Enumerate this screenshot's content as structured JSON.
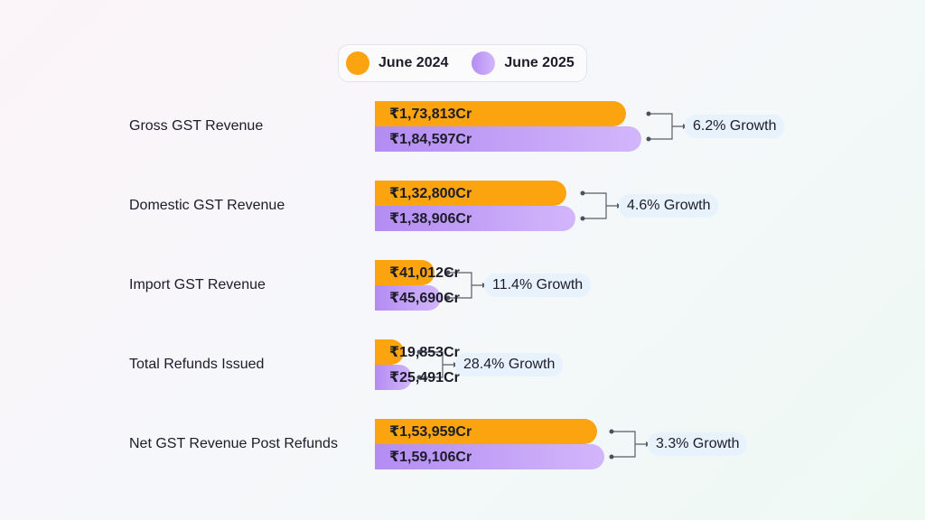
{
  "legend": [
    {
      "label": "June 2024",
      "color": "#fca40f"
    },
    {
      "label": "June 2025",
      "color": "#c3a2f7"
    }
  ],
  "chart_data": {
    "type": "bar",
    "orientation": "horizontal",
    "categories": [
      "Gross GST Revenue",
      "Domestic GST Revenue",
      "Import GST Revenue",
      "Total Refunds Issued",
      "Net GST Revenue Post Refunds"
    ],
    "series": [
      {
        "name": "June 2024",
        "color": "#fca40f",
        "values": [
          173813,
          132800,
          41012,
          19853,
          153959
        ],
        "labels": [
          "₹1,73,813Cr",
          "₹1,32,800Cr",
          "₹41,012Cr",
          "₹19,853Cr",
          "₹1,53,959Cr"
        ]
      },
      {
        "name": "June 2025",
        "color": "#c3a2f7",
        "values": [
          184597,
          138906,
          45690,
          25491,
          159106
        ],
        "labels": [
          "₹1,84,597Cr",
          "₹1,38,906Cr",
          "₹45,690Cr",
          "₹25,491Cr",
          "₹1,59,106Cr"
        ]
      }
    ],
    "growth_labels": [
      "6.2% Growth",
      "4.6% Growth",
      "11.4% Growth",
      "28.4% Growth",
      "3.3% Growth"
    ],
    "legend_position": "top",
    "grid": false
  }
}
